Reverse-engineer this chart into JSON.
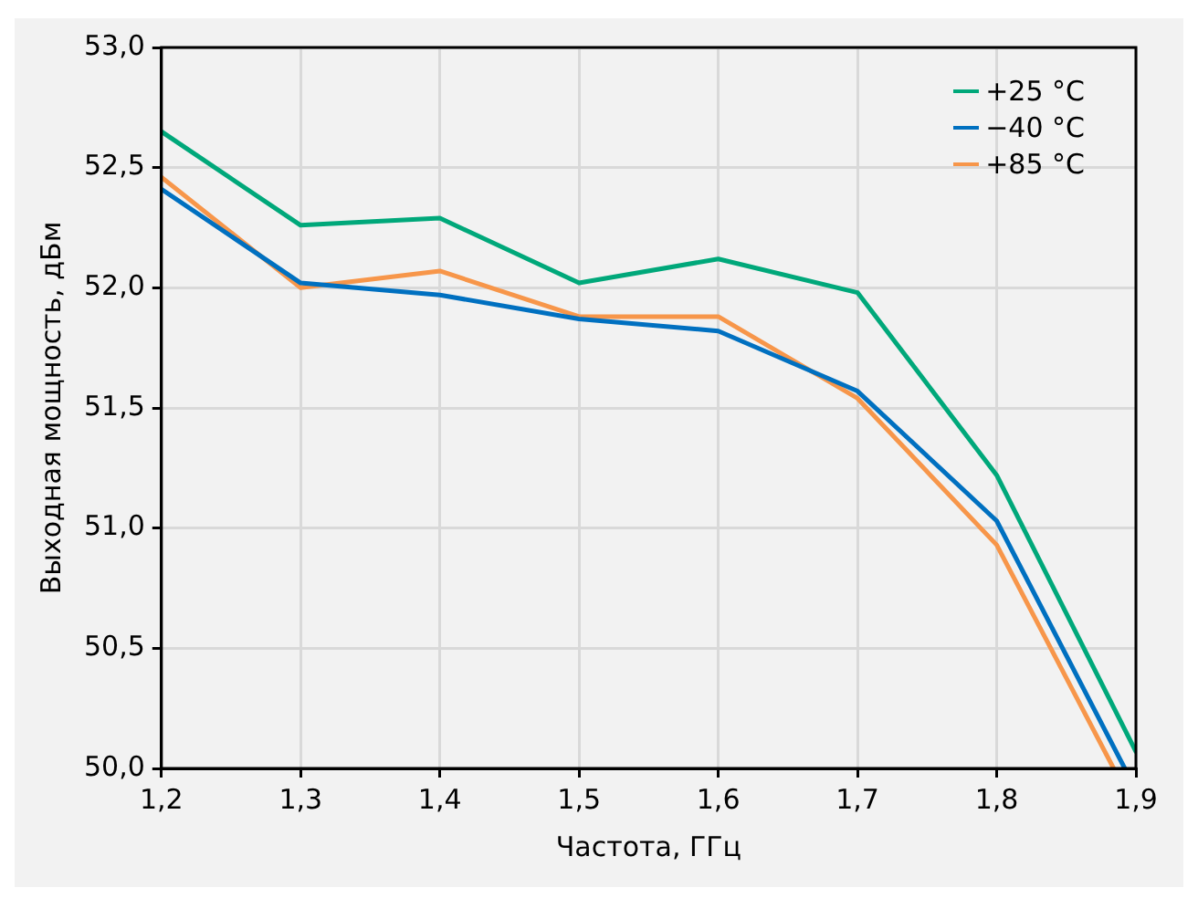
{
  "chart_data": {
    "type": "line",
    "xlabel": "Частота, ГГц",
    "ylabel": "Выходная мощность, дБм",
    "x": [
      1.2,
      1.3,
      1.4,
      1.5,
      1.6,
      1.7,
      1.8,
      1.9
    ],
    "series": [
      {
        "name": "+25 °C",
        "color": "#00a87a",
        "values": [
          52.65,
          52.26,
          52.29,
          52.02,
          52.12,
          51.98,
          51.22,
          50.07
        ]
      },
      {
        "name": "−40 °C",
        "color": "#0070c0",
        "x": [
          1.2,
          1.3,
          1.4,
          1.5,
          1.6,
          1.7,
          1.8,
          1.892
        ],
        "values": [
          52.41,
          52.02,
          51.97,
          51.87,
          51.82,
          51.57,
          51.03,
          50.0
        ]
      },
      {
        "name": "+85 °C",
        "color": "#f7964a",
        "x": [
          1.2,
          1.3,
          1.4,
          1.5,
          1.6,
          1.7,
          1.8,
          1.884
        ],
        "values": [
          52.46,
          52.0,
          52.07,
          51.88,
          51.88,
          51.54,
          50.93,
          50.0
        ]
      }
    ],
    "xlim": [
      1.2,
      1.9
    ],
    "ylim": [
      50,
      53
    ],
    "xticks": [
      {
        "value": 1.2,
        "label": "1,2"
      },
      {
        "value": 1.3,
        "label": "1,3"
      },
      {
        "value": 1.4,
        "label": "1,4"
      },
      {
        "value": 1.5,
        "label": "1,5"
      },
      {
        "value": 1.6,
        "label": "1,6"
      },
      {
        "value": 1.7,
        "label": "1,7"
      },
      {
        "value": 1.8,
        "label": "1,8"
      },
      {
        "value": 1.9,
        "label": "1,9"
      }
    ],
    "yticks": [
      {
        "value": 50,
        "label": "50,0"
      },
      {
        "value": 50.5,
        "label": "50,5"
      },
      {
        "value": 51,
        "label": "51,0"
      },
      {
        "value": 51.5,
        "label": "51,5"
      },
      {
        "value": 52,
        "label": "52,0"
      },
      {
        "value": 52.5,
        "label": "52,5"
      },
      {
        "value": 53,
        "label": "53,0"
      }
    ],
    "grid": true,
    "legend": "top right",
    "marker": "none",
    "line_style": "solid"
  }
}
